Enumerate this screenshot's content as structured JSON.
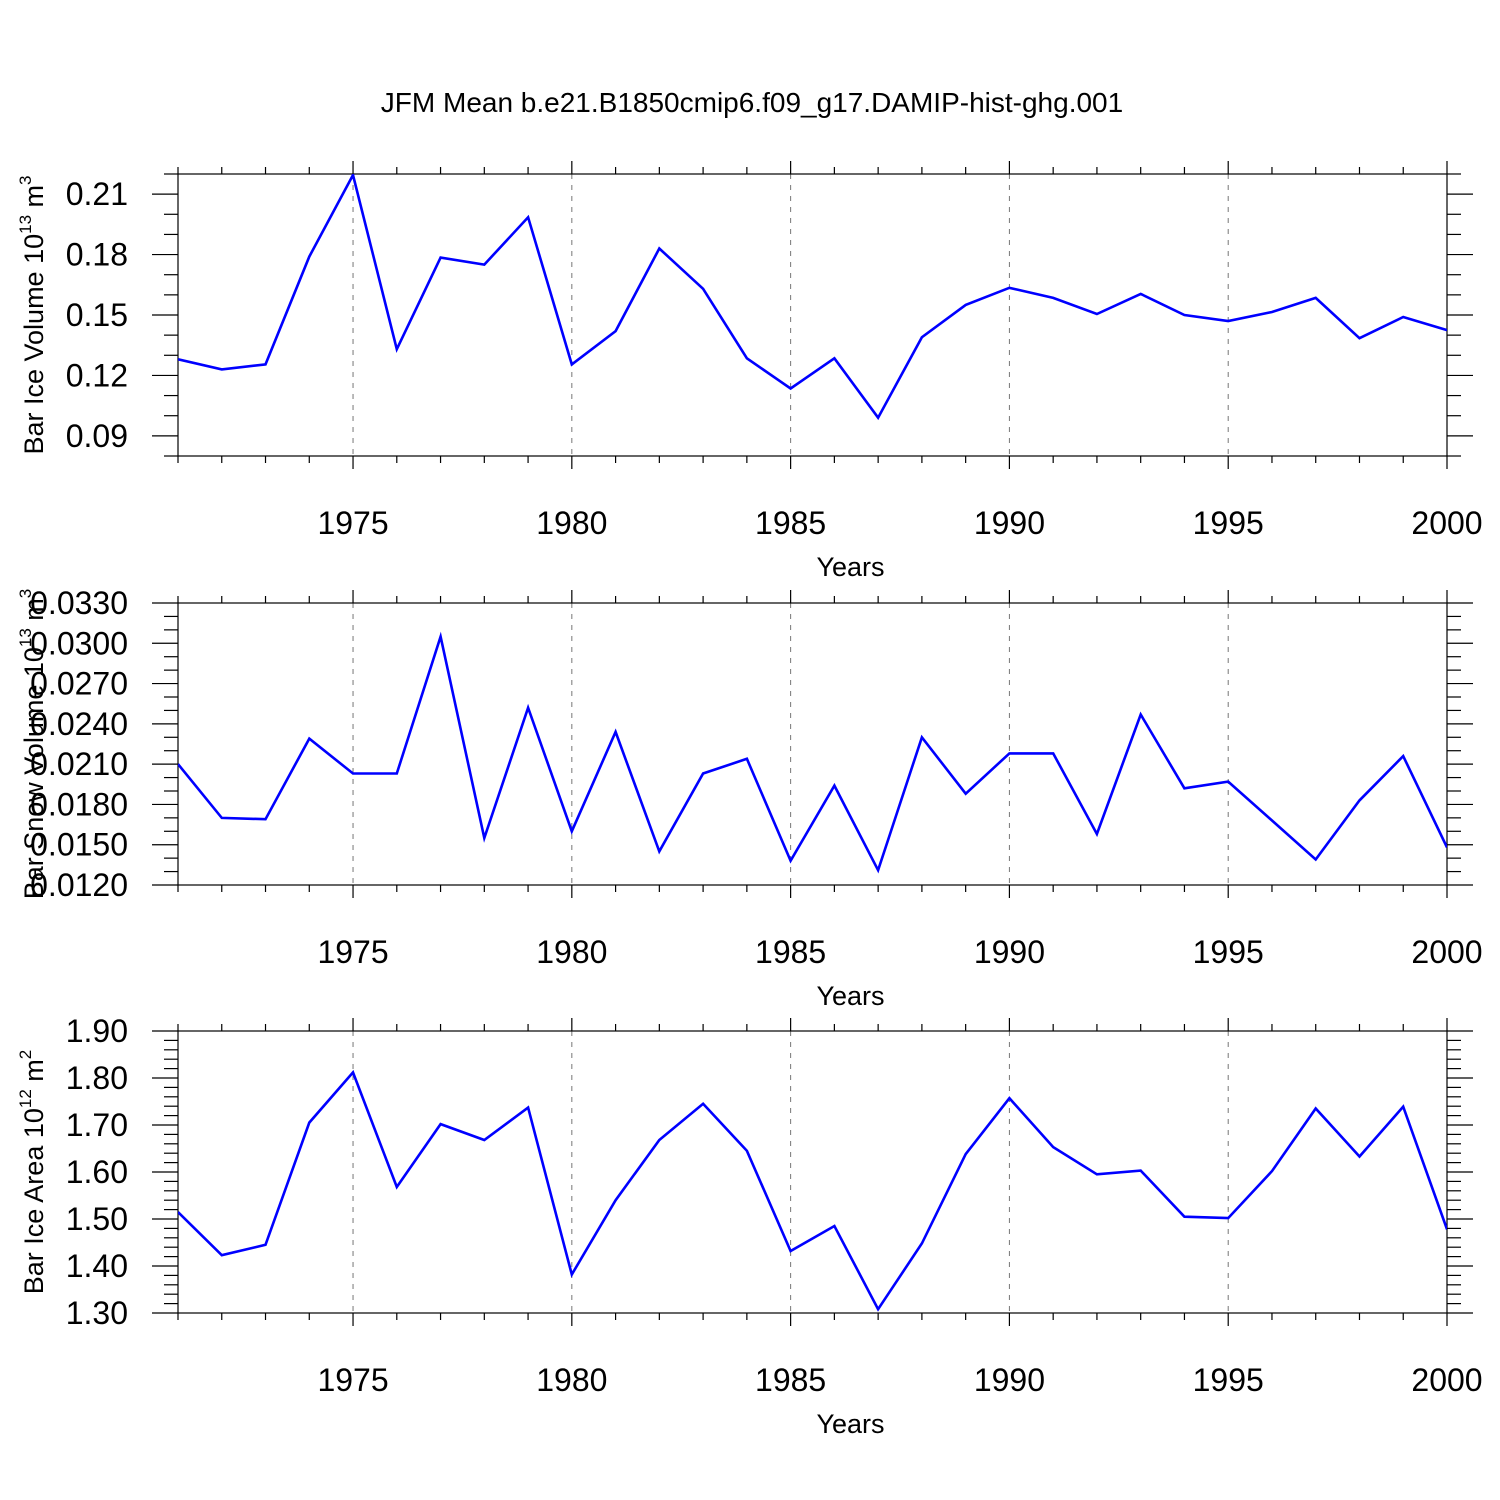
{
  "chart_data": [
    {
      "type": "line",
      "title": "JFM Mean b.e21.B1850cmip6.f09_g17.DAMIP-hist-ghg.001",
      "xlabel": "Years",
      "ylabel": "Bar Ice Volume 10",
      "ylabel_exponent": "13",
      "ylabel_unit": " m",
      "ylabel_unit_exponent": "3",
      "xlim": [
        1971,
        2000
      ],
      "ylim": [
        0.08,
        0.22
      ],
      "x_ticks": [
        "1975",
        "1980",
        "1985",
        "1990",
        "1995",
        "2000"
      ],
      "x_tick_values": [
        1975,
        1980,
        1985,
        1990,
        1995,
        2000
      ],
      "y_ticks": [
        "0.09",
        "0.12",
        "0.15",
        "0.18",
        "0.21"
      ],
      "y_tick_values": [
        0.09,
        0.12,
        0.15,
        0.18,
        0.21
      ],
      "y_minor_step": 0.01,
      "series": [
        {
          "name": "Bar Ice Volume",
          "color": "#0000ff",
          "x": [
            1971,
            1972,
            1973,
            1974,
            1975,
            1976,
            1977,
            1978,
            1979,
            1980,
            1981,
            1982,
            1983,
            1984,
            1985,
            1986,
            1987,
            1988,
            1989,
            1990,
            1991,
            1992,
            1993,
            1994,
            1995,
            1996,
            1997,
            1998,
            1999,
            2000
          ],
          "values": [
            0.128,
            0.123,
            0.1255,
            0.179,
            0.2195,
            0.133,
            0.1785,
            0.175,
            0.1985,
            0.1255,
            0.142,
            0.183,
            0.163,
            0.1285,
            0.1135,
            0.1285,
            0.099,
            0.139,
            0.155,
            0.1635,
            0.1585,
            0.1505,
            0.1605,
            0.15,
            0.147,
            0.1515,
            0.1585,
            0.1385,
            0.149,
            0.1425
          ]
        }
      ]
    },
    {
      "type": "line",
      "title": "",
      "xlabel": "Years",
      "ylabel": "Bar Snow Volume 10",
      "ylabel_exponent": "13",
      "ylabel_unit": " m",
      "ylabel_unit_exponent": "3",
      "xlim": [
        1971,
        2000
      ],
      "ylim": [
        0.012,
        0.033
      ],
      "x_ticks": [
        "1975",
        "1980",
        "1985",
        "1990",
        "1995",
        "2000"
      ],
      "x_tick_values": [
        1975,
        1980,
        1985,
        1990,
        1995,
        2000
      ],
      "y_ticks": [
        "0.0120",
        "0.0150",
        "0.0180",
        "0.0210",
        "0.0240",
        "0.0270",
        "0.0300",
        "0.0330"
      ],
      "y_tick_values": [
        0.012,
        0.015,
        0.018,
        0.021,
        0.024,
        0.027,
        0.03,
        0.033
      ],
      "y_minor_step": 0.001,
      "series": [
        {
          "name": "Bar Snow Volume",
          "color": "#0000ff",
          "x": [
            1971,
            1972,
            1973,
            1974,
            1975,
            1976,
            1977,
            1978,
            1979,
            1980,
            1981,
            1982,
            1983,
            1984,
            1985,
            1986,
            1987,
            1988,
            1989,
            1990,
            1991,
            1992,
            1993,
            1994,
            1995,
            1996,
            1997,
            1998,
            1999,
            2000
          ],
          "values": [
            0.021,
            0.017,
            0.0169,
            0.0229,
            0.0203,
            0.0203,
            0.0305,
            0.0155,
            0.0252,
            0.016,
            0.0234,
            0.0145,
            0.0203,
            0.0214,
            0.0138,
            0.0194,
            0.0131,
            0.023,
            0.0188,
            0.0218,
            0.0218,
            0.0158,
            0.0247,
            0.0192,
            0.0197,
            0.0168,
            0.0139,
            0.0183,
            0.0216,
            0.0148
          ]
        }
      ]
    },
    {
      "type": "line",
      "title": "",
      "xlabel": "Years",
      "ylabel": "Bar Ice Area 10",
      "ylabel_exponent": "12",
      "ylabel_unit": " m",
      "ylabel_unit_exponent": "2",
      "xlim": [
        1971,
        2000
      ],
      "ylim": [
        1.3,
        1.9
      ],
      "x_ticks": [
        "1975",
        "1980",
        "1985",
        "1990",
        "1995",
        "2000"
      ],
      "x_tick_values": [
        1975,
        1980,
        1985,
        1990,
        1995,
        2000
      ],
      "y_ticks": [
        "1.30",
        "1.40",
        "1.50",
        "1.60",
        "1.70",
        "1.80",
        "1.90"
      ],
      "y_tick_values": [
        1.3,
        1.4,
        1.5,
        1.6,
        1.7,
        1.8,
        1.9
      ],
      "y_minor_step": 0.02,
      "series": [
        {
          "name": "Bar Ice Area",
          "color": "#0000ff",
          "x": [
            1971,
            1972,
            1973,
            1974,
            1975,
            1976,
            1977,
            1978,
            1979,
            1980,
            1981,
            1982,
            1983,
            1984,
            1985,
            1986,
            1987,
            1988,
            1989,
            1990,
            1991,
            1992,
            1993,
            1994,
            1995,
            1996,
            1997,
            1998,
            1999,
            2000
          ],
          "values": [
            1.515,
            1.423,
            1.445,
            1.705,
            1.812,
            1.568,
            1.702,
            1.668,
            1.737,
            1.382,
            1.54,
            1.668,
            1.745,
            1.645,
            1.432,
            1.485,
            1.308,
            1.448,
            1.638,
            1.757,
            1.653,
            1.595,
            1.603,
            1.505,
            1.502,
            1.602,
            1.735,
            1.633,
            1.739,
            1.478
          ]
        }
      ]
    }
  ]
}
